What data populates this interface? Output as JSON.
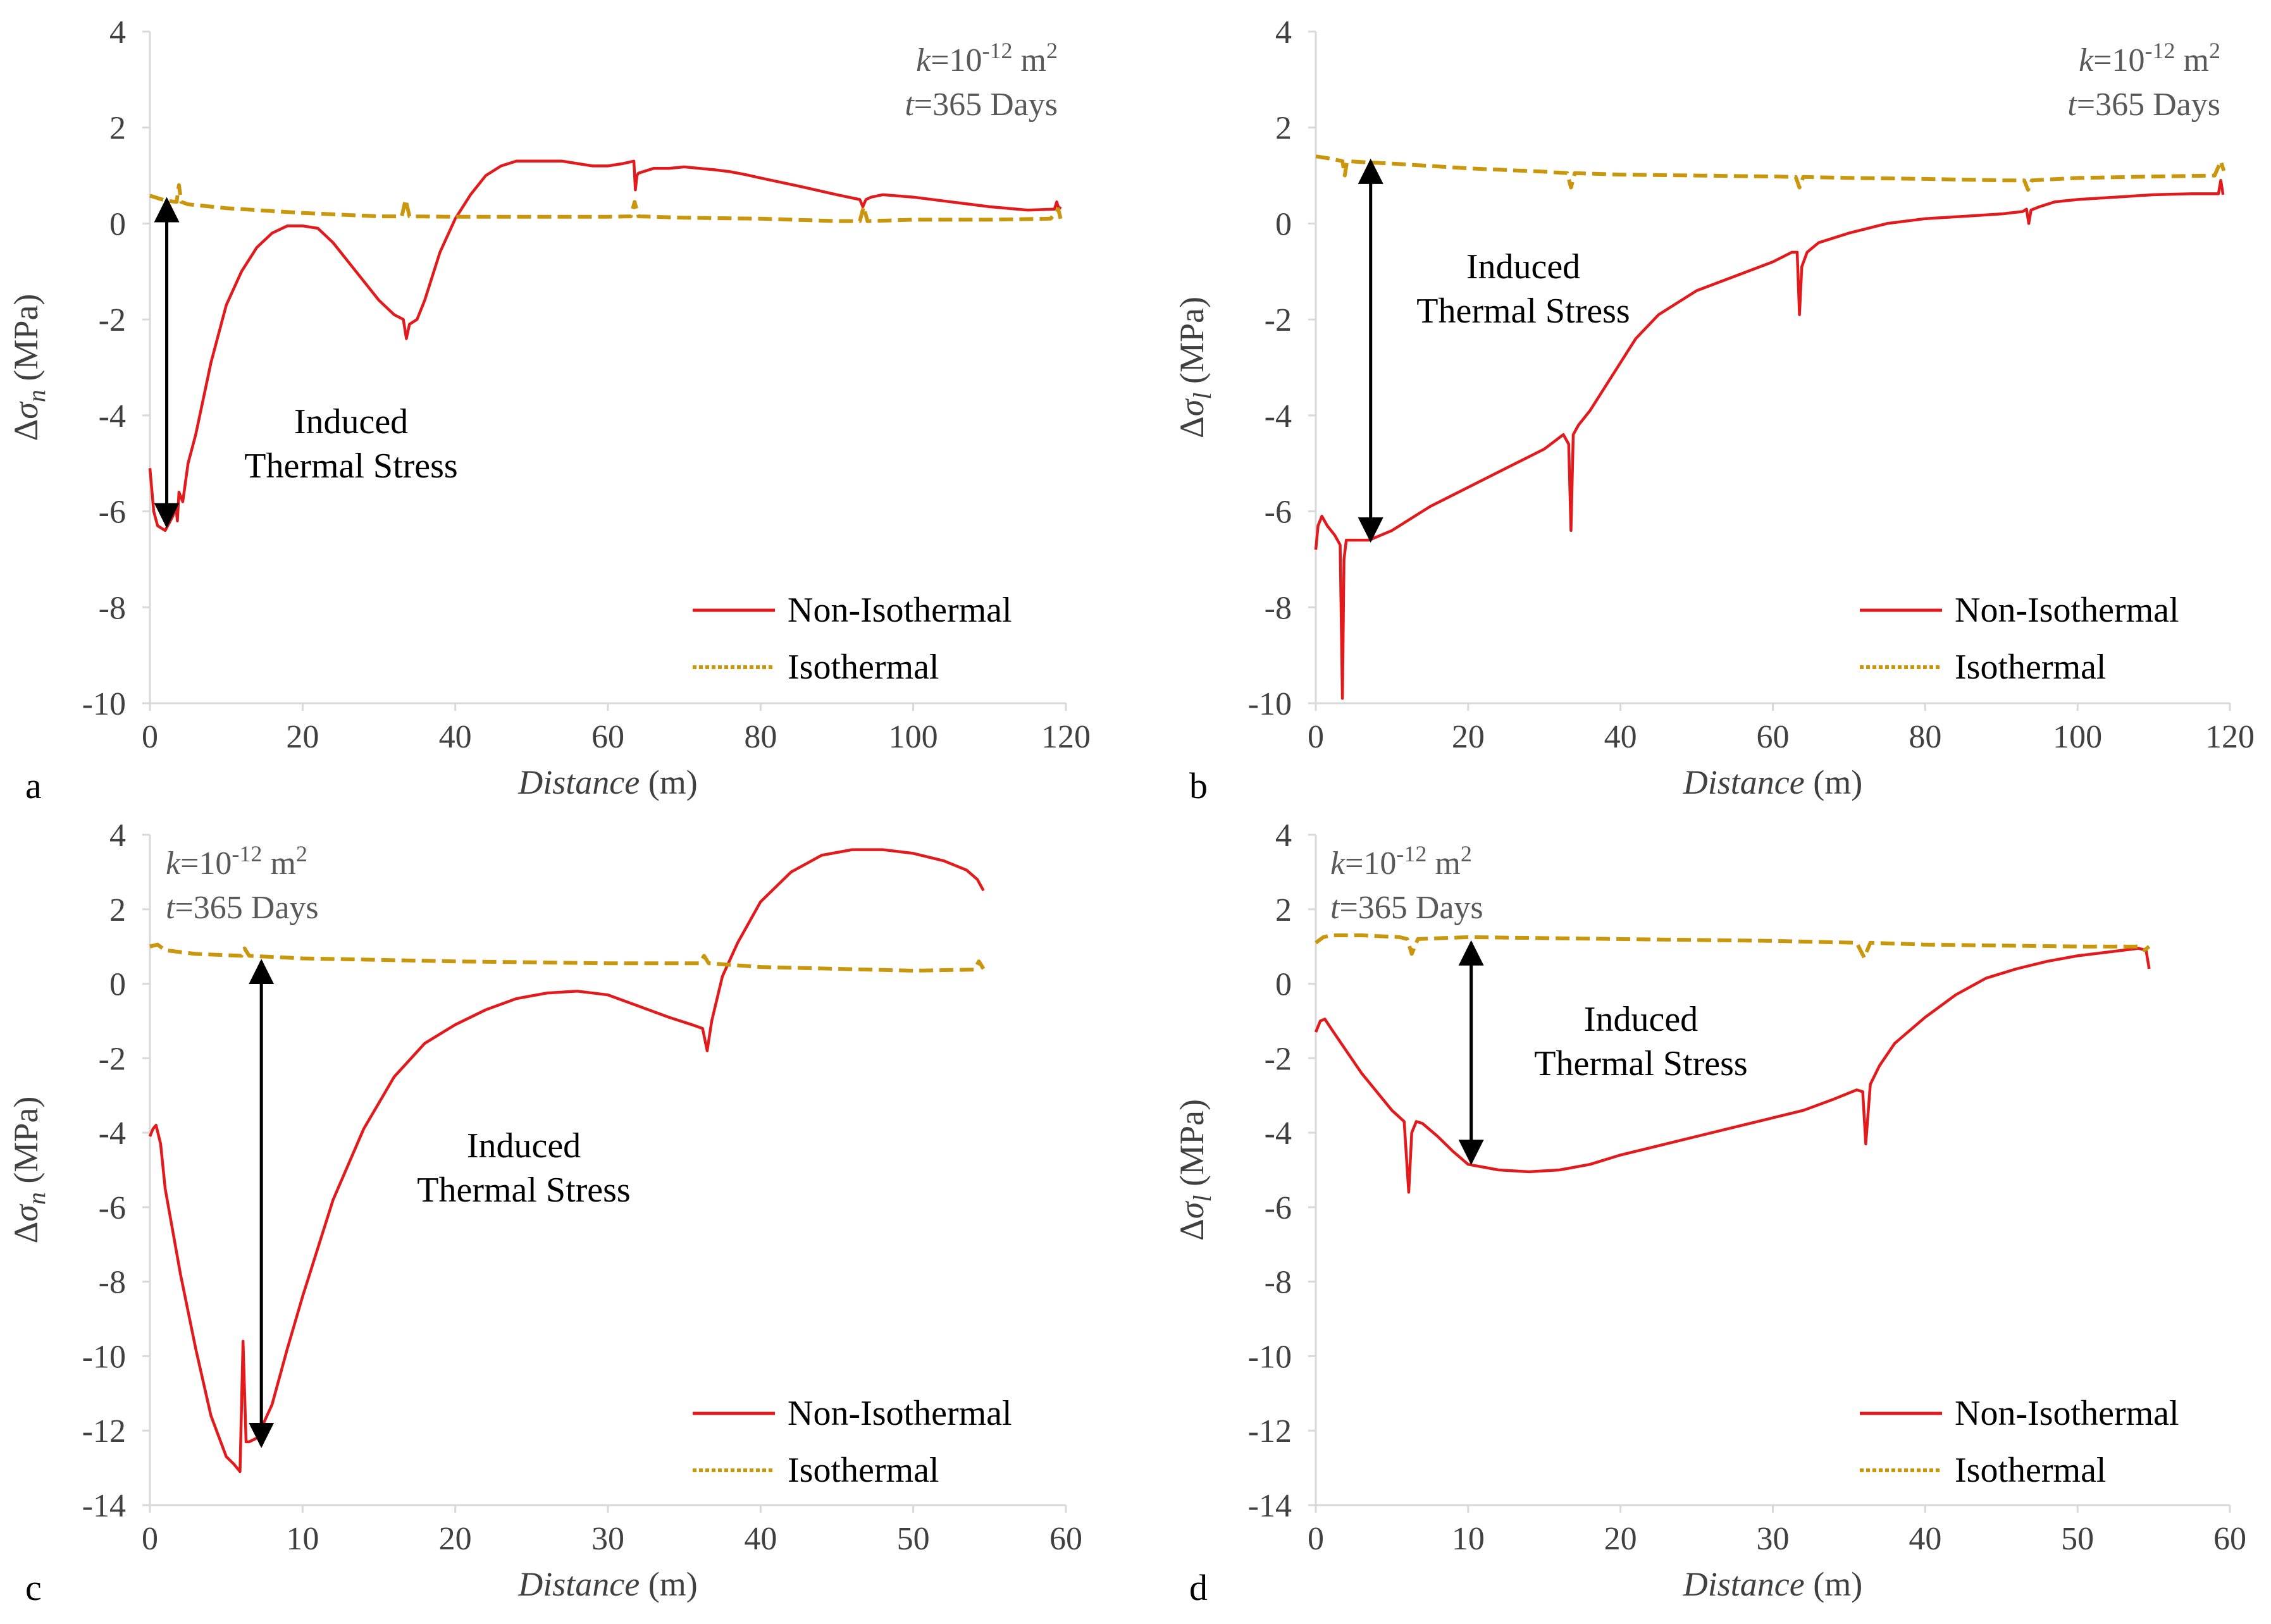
{
  "colors": {
    "non_isothermal": "#e31a1c",
    "isothermal": "#c9960c",
    "axis": "#d9d9d9",
    "arrow": "#000000"
  },
  "chart_data": [
    {
      "panel": "a",
      "type": "line",
      "xlabel": "Distance",
      "xlabel_unit": "(m)",
      "ylabel_prefix": "Δσ",
      "ylabel_sub": "n",
      "ylabel_unit": "(MPa)",
      "xlim": [
        0,
        120
      ],
      "ylim": [
        -10,
        4
      ],
      "xticks": [
        0,
        20,
        40,
        60,
        80,
        100,
        120
      ],
      "yticks": [
        -10,
        -8,
        -6,
        -4,
        -2,
        0,
        2,
        4
      ],
      "params": {
        "k_label": "k",
        "k_value": "=10",
        "k_exp": "-12",
        "k_unit": " m",
        "k_unit_exp": "2",
        "t_label": "t",
        "t_value": "=365 Days"
      },
      "annotation": {
        "line1": "Induced",
        "line2": "Thermal Stress",
        "arrow_x": 2.2,
        "arrow_y_top": 0.5,
        "arrow_y_bottom": -6.3
      },
      "legend": {
        "non_isothermal": "Non-Isothermal",
        "isothermal": "Isothermal"
      },
      "series": [
        {
          "name": "Non-Isothermal",
          "x": [
            0,
            0.5,
            1,
            2,
            3,
            3.4,
            3.6,
            3.8,
            4.3,
            5,
            6,
            8,
            10,
            12,
            14,
            16,
            18,
            20,
            22,
            24,
            26,
            28,
            30,
            32,
            33.2,
            33.6,
            34,
            35,
            36,
            38,
            40,
            42,
            44,
            46,
            48,
            50,
            52,
            54,
            56,
            58,
            60,
            62,
            63.4,
            63.6,
            63.8,
            64,
            65,
            66,
            68,
            70,
            72,
            74,
            76,
            78,
            80,
            85,
            90,
            93,
            93.4,
            93.8,
            94.5,
            96,
            100,
            105,
            110,
            115,
            118.5,
            118.8,
            119.1,
            119.3
          ],
          "y": [
            -5.1,
            -6.0,
            -6.3,
            -6.4,
            -6.1,
            -5.9,
            -6.2,
            -5.6,
            -5.8,
            -5.0,
            -4.4,
            -2.9,
            -1.7,
            -1.0,
            -0.5,
            -0.2,
            -0.05,
            -0.05,
            -0.1,
            -0.4,
            -0.8,
            -1.2,
            -1.6,
            -1.9,
            -2.0,
            -2.4,
            -2.1,
            -2.0,
            -1.6,
            -0.6,
            0.1,
            0.6,
            1.0,
            1.2,
            1.3,
            1.3,
            1.3,
            1.3,
            1.25,
            1.2,
            1.2,
            1.25,
            1.3,
            0.7,
            1.0,
            1.05,
            1.1,
            1.15,
            1.15,
            1.18,
            1.15,
            1.12,
            1.08,
            1.02,
            0.95,
            0.78,
            0.6,
            0.5,
            0.35,
            0.5,
            0.55,
            0.6,
            0.55,
            0.45,
            0.35,
            0.28,
            0.3,
            0.45,
            0.3,
            0.35
          ]
        },
        {
          "name": "Isothermal",
          "x": [
            0,
            2,
            3.5,
            3.8,
            4.1,
            5,
            10,
            20,
            30,
            33,
            33.5,
            34,
            40,
            50,
            60,
            63,
            63.5,
            64,
            70,
            80,
            90,
            93,
            93.5,
            94,
            100,
            110,
            118,
            119,
            119.3
          ],
          "y": [
            0.58,
            0.48,
            0.45,
            0.8,
            0.45,
            0.4,
            0.32,
            0.22,
            0.15,
            0.15,
            0.5,
            0.15,
            0.14,
            0.14,
            0.14,
            0.15,
            0.45,
            0.15,
            0.12,
            0.1,
            0.05,
            0.05,
            0.35,
            0.05,
            0.08,
            0.08,
            0.1,
            0.3,
            0.1
          ]
        }
      ]
    },
    {
      "panel": "b",
      "type": "line",
      "xlabel": "Distance",
      "xlabel_unit": "(m)",
      "ylabel_prefix": "Δσ",
      "ylabel_sub": "l",
      "ylabel_unit": "(MPa)",
      "xlim": [
        0,
        120
      ],
      "ylim": [
        -10,
        4
      ],
      "xticks": [
        0,
        20,
        40,
        60,
        80,
        100,
        120
      ],
      "yticks": [
        -10,
        -8,
        -6,
        -4,
        -2,
        0,
        2,
        4
      ],
      "params": {
        "k_label": "k",
        "k_value": "=10",
        "k_exp": "-12",
        "k_unit": " m",
        "k_unit_exp": "2",
        "t_label": "t",
        "t_value": "=365 Days"
      },
      "annotation": {
        "line1": "Induced",
        "line2": "Thermal Stress",
        "arrow_x": 7.2,
        "arrow_y_top": 1.3,
        "arrow_y_bottom": -6.6
      },
      "legend": {
        "non_isothermal": "Non-Isothermal",
        "isothermal": "Isothermal"
      },
      "series": [
        {
          "name": "Non-Isothermal",
          "x": [
            0,
            0.3,
            0.8,
            1.5,
            2.5,
            3.2,
            3.5,
            3.7,
            4.0,
            5,
            7,
            10,
            15,
            20,
            25,
            30,
            32.5,
            33.2,
            33.5,
            33.8,
            34.5,
            36,
            38,
            40,
            42,
            45,
            50,
            55,
            60,
            62.5,
            63.2,
            63.5,
            63.8,
            64.5,
            66,
            70,
            75,
            80,
            85,
            90,
            92.8,
            93.3,
            93.6,
            93.9,
            95,
            97,
            100,
            105,
            110,
            115,
            118.5,
            118.8,
            119.1
          ],
          "y": [
            -6.8,
            -6.3,
            -6.1,
            -6.3,
            -6.5,
            -6.7,
            -9.9,
            -7.0,
            -6.6,
            -6.6,
            -6.6,
            -6.4,
            -5.9,
            -5.5,
            -5.1,
            -4.7,
            -4.4,
            -4.6,
            -6.4,
            -4.4,
            -4.2,
            -3.9,
            -3.4,
            -2.9,
            -2.4,
            -1.9,
            -1.4,
            -1.1,
            -0.8,
            -0.6,
            -0.6,
            -1.9,
            -0.9,
            -0.6,
            -0.4,
            -0.2,
            0,
            0.1,
            0.15,
            0.2,
            0.25,
            0.3,
            0.0,
            0.28,
            0.35,
            0.45,
            0.5,
            0.55,
            0.6,
            0.62,
            0.62,
            0.9,
            0.6
          ]
        },
        {
          "name": "Isothermal",
          "x": [
            0,
            2,
            3.5,
            3.8,
            4.1,
            6,
            10,
            20,
            30,
            33,
            33.5,
            34,
            40,
            50,
            60,
            63,
            63.5,
            64,
            70,
            80,
            90,
            93,
            93.5,
            94,
            100,
            110,
            118,
            118.8,
            119.2
          ],
          "y": [
            1.4,
            1.35,
            1.3,
            1.0,
            1.3,
            1.28,
            1.25,
            1.15,
            1.08,
            1.05,
            0.75,
            1.05,
            1.02,
            1.0,
            0.98,
            0.97,
            0.75,
            0.97,
            0.95,
            0.93,
            0.9,
            0.9,
            0.7,
            0.9,
            0.95,
            0.98,
            1.0,
            1.3,
            1.1
          ]
        }
      ]
    },
    {
      "panel": "c",
      "type": "line",
      "xlabel": "Distance",
      "xlabel_unit": "(m)",
      "ylabel_prefix": "Δσ",
      "ylabel_sub": "n",
      "ylabel_unit": "(MPa)",
      "xlim": [
        0,
        60
      ],
      "ylim": [
        -14,
        4
      ],
      "xticks": [
        0,
        10,
        20,
        30,
        40,
        50,
        60
      ],
      "yticks": [
        -14,
        -12,
        -10,
        -8,
        -6,
        -4,
        -2,
        0,
        2,
        4
      ],
      "params": {
        "k_label": "k",
        "k_value": "=10",
        "k_exp": "-12",
        "k_unit": " m",
        "k_unit_exp": "2",
        "t_label": "t",
        "t_value": "=365 Days"
      },
      "annotation": {
        "line1": "Induced",
        "line2": "Thermal Stress",
        "arrow_x": 7.3,
        "arrow_y_top": 0.6,
        "arrow_y_bottom": -12.4
      },
      "legend": {
        "non_isothermal": "Non-Isothermal",
        "isothermal": "Isothermal"
      },
      "series": [
        {
          "name": "Non-Isothermal",
          "x": [
            0,
            0.2,
            0.4,
            0.7,
            1,
            2,
            3,
            4,
            5,
            5.5,
            5.9,
            6.1,
            6.3,
            6.5,
            7,
            8,
            9,
            10,
            12,
            14,
            16,
            18,
            20,
            22,
            24,
            26,
            28,
            30,
            32,
            34,
            35.5,
            36.2,
            36.5,
            36.8,
            37.5,
            38.5,
            40,
            42,
            44,
            46,
            48,
            50,
            52,
            53.5,
            54.2,
            54.6
          ],
          "y": [
            -4.1,
            -3.9,
            -3.8,
            -4.3,
            -5.5,
            -7.8,
            -9.8,
            -11.6,
            -12.7,
            -12.9,
            -13.1,
            -9.6,
            -12.3,
            -12.3,
            -12.2,
            -11.3,
            -9.8,
            -8.4,
            -5.8,
            -3.9,
            -2.5,
            -1.6,
            -1.1,
            -0.7,
            -0.4,
            -0.25,
            -0.2,
            -0.3,
            -0.6,
            -0.9,
            -1.1,
            -1.2,
            -1.8,
            -1.0,
            0.2,
            1.1,
            2.2,
            3.0,
            3.45,
            3.6,
            3.6,
            3.5,
            3.3,
            3.05,
            2.8,
            2.5
          ]
        },
        {
          "name": "Isothermal",
          "x": [
            0,
            0.5,
            1,
            3,
            6,
            6.2,
            6.5,
            10,
            20,
            30,
            36,
            36.3,
            36.6,
            40,
            50,
            54,
            54.3,
            54.6
          ],
          "y": [
            1.0,
            1.05,
            0.9,
            0.8,
            0.75,
            0.95,
            0.75,
            0.68,
            0.6,
            0.55,
            0.55,
            0.75,
            0.55,
            0.45,
            0.35,
            0.38,
            0.6,
            0.4
          ]
        }
      ]
    },
    {
      "panel": "d",
      "type": "line",
      "xlabel": "Distance",
      "xlabel_unit": "(m)",
      "ylabel_prefix": "Δσ",
      "ylabel_sub": "l",
      "ylabel_unit": "(MPa)",
      "xlim": [
        0,
        60
      ],
      "ylim": [
        -14,
        4
      ],
      "xticks": [
        0,
        10,
        20,
        30,
        40,
        50,
        60
      ],
      "yticks": [
        -14,
        -12,
        -10,
        -8,
        -6,
        -4,
        -2,
        0,
        2,
        4
      ],
      "params": {
        "k_label": "k",
        "k_value": "=10",
        "k_exp": "-12",
        "k_unit": " m",
        "k_unit_exp": "2",
        "t_label": "t",
        "t_value": "=365 Days"
      },
      "annotation": {
        "line1": "Induced",
        "line2": "Thermal Stress",
        "arrow_x": 10.2,
        "arrow_y_top": 1.1,
        "arrow_y_bottom": -4.8
      },
      "legend": {
        "non_isothermal": "Non-Isothermal",
        "isothermal": "Isothermal"
      },
      "series": [
        {
          "name": "Non-Isothermal",
          "x": [
            0,
            0.3,
            0.6,
            1,
            2,
            3,
            4,
            5,
            5.8,
            6.1,
            6.3,
            6.6,
            7,
            8,
            9,
            10,
            12,
            14,
            16,
            18,
            20,
            22,
            25,
            28,
            30,
            32,
            34,
            35.5,
            35.9,
            36.1,
            36.4,
            37,
            38,
            40,
            42,
            44,
            46,
            48,
            50,
            52,
            54,
            54.5,
            54.7
          ],
          "y": [
            -1.3,
            -1.0,
            -0.95,
            -1.2,
            -1.8,
            -2.4,
            -2.9,
            -3.4,
            -3.7,
            -5.6,
            -4.0,
            -3.7,
            -3.75,
            -4.1,
            -4.5,
            -4.85,
            -5.0,
            -5.05,
            -5.0,
            -4.85,
            -4.6,
            -4.4,
            -4.1,
            -3.8,
            -3.6,
            -3.4,
            -3.1,
            -2.85,
            -2.9,
            -4.3,
            -2.7,
            -2.2,
            -1.6,
            -0.9,
            -0.3,
            0.15,
            0.4,
            0.6,
            0.75,
            0.85,
            0.95,
            0.9,
            0.4
          ]
        },
        {
          "name": "Isothermal",
          "x": [
            0,
            0.5,
            1,
            3,
            5.5,
            6,
            6.3,
            6.7,
            10,
            20,
            30,
            35.5,
            36,
            36.4,
            40,
            50,
            54,
            54.4,
            54.7
          ],
          "y": [
            1.1,
            1.25,
            1.3,
            1.3,
            1.25,
            1.2,
            0.8,
            1.2,
            1.25,
            1.2,
            1.15,
            1.1,
            0.7,
            1.1,
            1.05,
            1.0,
            1.0,
            0.9,
            1.0
          ]
        }
      ]
    }
  ]
}
